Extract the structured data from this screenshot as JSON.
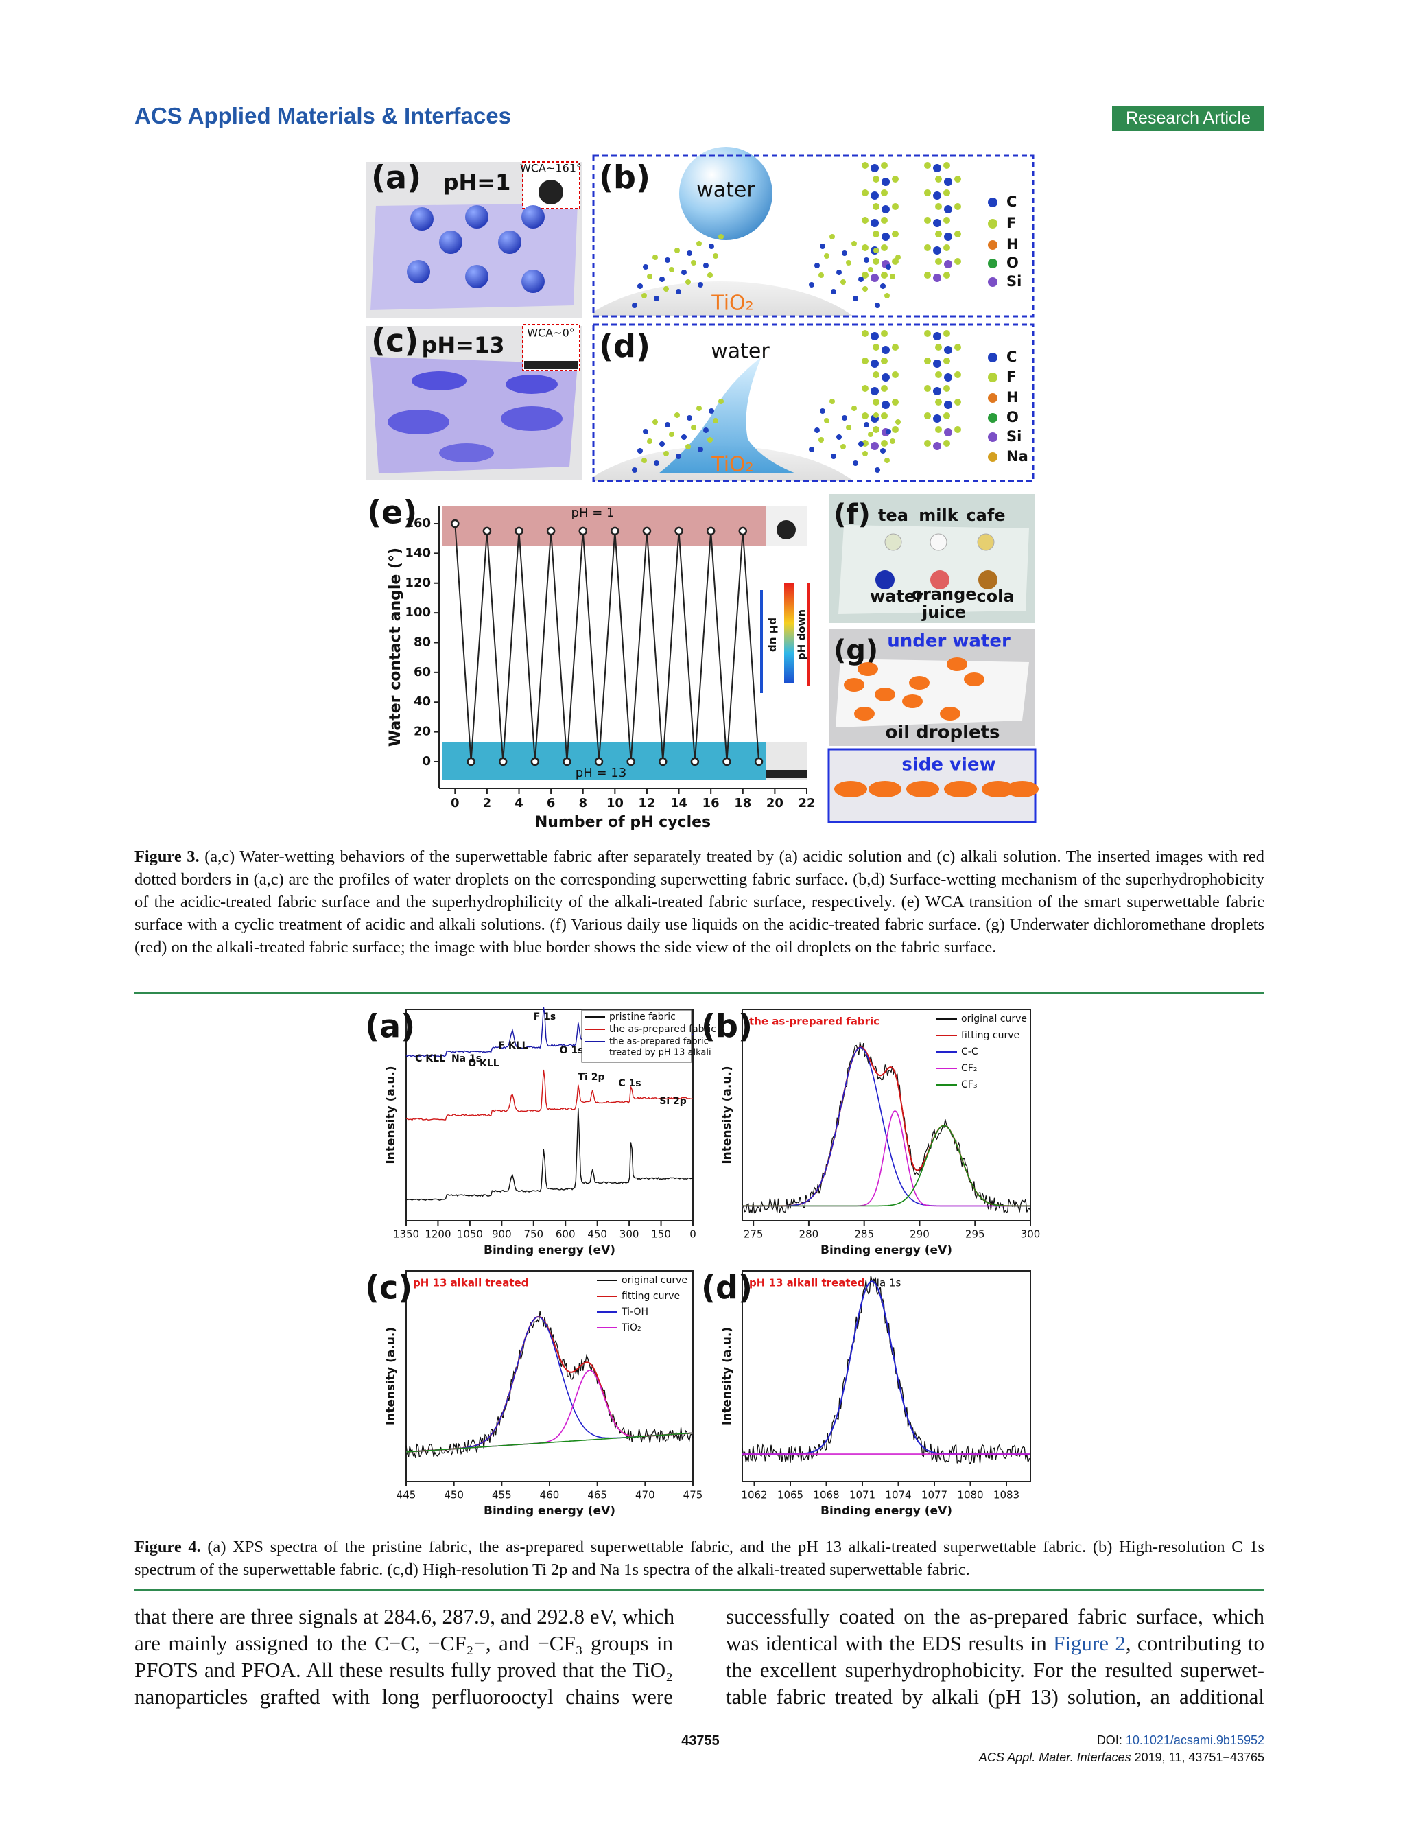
{
  "header": {
    "journal": "ACS Applied Materials & Interfaces",
    "article_type": "Research Article"
  },
  "figure3": {
    "panels": {
      "a": {
        "label": "(a)",
        "condition": "pH=1",
        "inset": "WCA~161°"
      },
      "b": {
        "label": "(b)",
        "droplet": "water",
        "particle": "TiO₂",
        "legend": [
          "C",
          "F",
          "H",
          "O",
          "Si"
        ]
      },
      "c": {
        "label": "(c)",
        "condition": "pH=13",
        "inset": "WCA~0°"
      },
      "d": {
        "label": "(d)",
        "droplet": "water",
        "particle": "TiO₂",
        "legend": [
          "C",
          "F",
          "H",
          "O",
          "Si",
          "Na"
        ]
      },
      "e": {
        "label": "(e)"
      },
      "f": {
        "label": "(f)",
        "liquids_top": [
          "tea",
          "milk",
          "cafe"
        ],
        "liquids_bottom": [
          "water",
          "orange",
          "juice",
          "cola"
        ]
      },
      "g": {
        "label": "(g)",
        "title": "under water",
        "caption": "oil droplets",
        "side": "side view"
      }
    },
    "chart_data": {
      "type": "line",
      "xlabel": "Number of pH cycles",
      "ylabel": "Water contact angle (°)",
      "annotations": {
        "top_band": "pH = 1",
        "bottom_band": "pH = 13",
        "up": "pH up",
        "down": "pH down"
      },
      "x": [
        0,
        1,
        2,
        3,
        4,
        5,
        6,
        7,
        8,
        9,
        10,
        11,
        12,
        13,
        14,
        15,
        16,
        17,
        18,
        19
      ],
      "series": [
        {
          "name": null,
          "color": "#222222",
          "values": [
            160,
            0,
            155,
            0,
            155,
            0,
            155,
            0,
            155,
            0,
            155,
            0,
            155,
            0,
            155,
            0,
            155,
            0,
            155,
            0
          ]
        }
      ],
      "xlim": [
        -1,
        22
      ],
      "xticks": [
        0,
        2,
        4,
        6,
        8,
        10,
        12,
        14,
        16,
        18,
        20,
        22
      ],
      "ylim": [
        -18,
        172
      ],
      "yticks": [
        0,
        20,
        40,
        60,
        80,
        100,
        120,
        140,
        160
      ]
    },
    "caption": {
      "label": "Figure 3.",
      "text": " (a,c) Water-wetting behaviors of the superwettable fabric after separately treated by (a) acidic solution and (c) alkali solution. The inserted images with red dotted borders in (a,c) are the profiles of water droplets on the corresponding superwetting fabric surface. (b,d) Surface-wetting mechanism of the superhydrophobicity of the acidic-treated fabric surface and the superhydrophilicity of the alkali-treated fabric surface, respectively. (e) WCA transition of the smart superwettable fabric surface with a cyclic treatment of acidic and alkali solutions. (f) Various daily use liquids on the acidic-treated fabric surface. (g) Underwater dichloromethane droplets (red) on the alkali-treated fabric surface; the image with blue border shows the side view of the oil droplets on the fabric surface."
    }
  },
  "figure4": {
    "panels": [
      {
        "label": "(a)",
        "xlabel": "Binding energy (eV)",
        "ylabel": "Intensity (a.u.)",
        "xlim": [
          1350,
          0
        ],
        "xticks": [
          1350,
          1200,
          1050,
          900,
          750,
          600,
          450,
          300,
          150,
          0
        ],
        "peaks": [
          "F 1s",
          "F KLL",
          "O 1s",
          "C KLL",
          "Na 1s",
          "O KLL",
          "Ti 2p",
          "C 1s",
          "Si 2p"
        ],
        "legend": [
          "pristine fabric",
          "the as-prepared fabric",
          [
            "the as-prepared fabric",
            "treated by pH 13 alkali"
          ]
        ]
      },
      {
        "label": "(b)",
        "title": "the as-prepared fabric",
        "xlabel": "Binding energy (eV)",
        "ylabel": "Intensity (a.u.)",
        "xlim": [
          274,
          300
        ],
        "xticks": [
          275,
          280,
          285,
          290,
          295,
          300
        ],
        "legend": [
          "original curve",
          "fitting curve",
          "C-C",
          "CF₂",
          "CF₃"
        ]
      },
      {
        "label": "(c)",
        "title": "pH 13 alkali treated",
        "xlabel": "Binding energy (eV)",
        "ylabel": "Intensity (a.u.)",
        "xlim": [
          445,
          475
        ],
        "xticks": [
          445,
          450,
          455,
          460,
          465,
          470,
          475
        ],
        "legend": [
          "original curve",
          "fitting curve",
          "Ti-OH",
          "TiO₂"
        ]
      },
      {
        "label": "(d)",
        "title": "pH 13 alkali treated",
        "peak": "Na 1s",
        "xlabel": "Binding energy (eV)",
        "ylabel": "Intensity (a.u.)",
        "xlim": [
          1061,
          1085
        ],
        "xticks": [
          1062,
          1065,
          1068,
          1071,
          1074,
          1077,
          1080,
          1083
        ]
      }
    ],
    "caption": {
      "label": "Figure 4.",
      "text": " (a) XPS spectra of the pristine fabric, the as-prepared superwettable fabric, and the pH 13 alkali-treated superwettable fabric. (b) High-resolution C 1s spectrum of the superwettable fabric. (c,d) High-resolution Ti 2p and Na 1s spectra of the alkali-treated superwettable fabric."
    }
  },
  "body": {
    "left": [
      "that there are three signals at 284.6, 287.9, and 292.8 eV, which",
      "are mainly assigned to the C−C, −CF₂−, and −CF₃ groups in",
      "PFOTS and PFOA. All these results fully proved that the TiO₂",
      "nanoparticles grafted with long perfluorooctyl chains were"
    ],
    "right": [
      "successfully coated on the as-prepared fabric surface, which",
      [
        "was identical with the EDS results in ",
        "Figure 2",
        ", contributing to"
      ],
      "the excellent superhydrophobicity. For the resulted superwet-",
      "table fabric treated by alkali (pH 13) solution, an additional"
    ]
  },
  "footer": {
    "page": "43755",
    "doi_label": "DOI: ",
    "doi": "10.1021/acsami.9b15952",
    "journal": "ACS Appl. Mater. Interfaces",
    "citation": " 2019, 11, 43751−43765"
  }
}
